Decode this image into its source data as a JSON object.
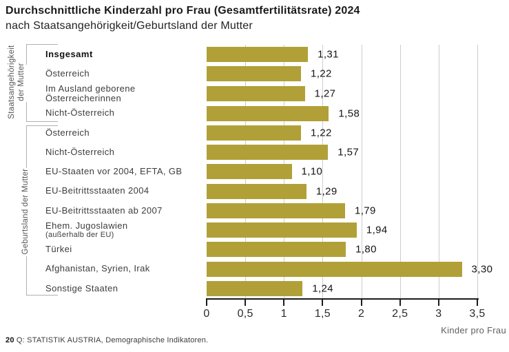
{
  "header": {
    "title": "Durchschnittliche Kinderzahl pro Frau (Gesamtfertilitätsrate) 2024",
    "subtitle": "nach Staatsangehörigkeit/Geburtsland der Mutter"
  },
  "footer": {
    "page_number": "20",
    "source": "Q: STATISTIK AUSTRIA, Demographische Indikatoren."
  },
  "colors": {
    "bar": "#b1a037",
    "grid": "#cccccc",
    "axis": "#1a1a1a",
    "bracket": "#b0b0b0"
  },
  "chart_data": {
    "type": "bar",
    "orientation": "horizontal",
    "title": "Durchschnittliche Kinderzahl pro Frau (Gesamtfertilitätsrate) 2024",
    "subtitle": "nach Staatsangehörigkeit/Geburtsland der Mutter",
    "xlabel": "Kinder pro Frau",
    "xlim": [
      0,
      3.5
    ],
    "xticks": [
      "0",
      "0,5",
      "1",
      "1,5",
      "2",
      "2,5",
      "3",
      "3,5"
    ],
    "xtick_values": [
      0,
      0.5,
      1,
      1.5,
      2,
      2.5,
      3,
      3.5
    ],
    "grid": "vertical gridlines every 0.5, behind bars",
    "groups": [
      {
        "label": "Staatsangehörigkeit der Mutter",
        "label_lines": [
          "Staatsangehörigkeit",
          "der Mutter"
        ],
        "row_start": 0,
        "row_end": 3
      },
      {
        "label": "Geburtsland der Mutter",
        "label_lines": [
          "Geburtsland der Mutter"
        ],
        "row_start": 4,
        "row_end": 12
      }
    ],
    "categories": [
      {
        "lines": [
          "Insgesamt"
        ],
        "bold": true
      },
      {
        "lines": [
          "Österreich"
        ]
      },
      {
        "lines": [
          "Im Ausland geborene",
          "Österreicherinnen"
        ]
      },
      {
        "lines": [
          "Nicht-Österreich"
        ]
      },
      {
        "lines": [
          "Österreich"
        ]
      },
      {
        "lines": [
          "Nicht-Österreich"
        ]
      },
      {
        "lines": [
          "EU-Staaten vor 2004, EFTA, GB"
        ]
      },
      {
        "lines": [
          "EU-Beitrittsstaaten 2004"
        ]
      },
      {
        "lines": [
          "EU-Beitrittsstaaten ab 2007"
        ]
      },
      {
        "lines": [
          "Ehem. Jugoslawien",
          "(außerhalb der EU)"
        ],
        "small_second_line": true
      },
      {
        "lines": [
          "Türkei"
        ]
      },
      {
        "lines": [
          "Afghanistan, Syrien, Irak"
        ]
      },
      {
        "lines": [
          "Sonstige Staaten"
        ]
      }
    ],
    "values": [
      1.31,
      1.22,
      1.27,
      1.58,
      1.22,
      1.57,
      1.1,
      1.29,
      1.79,
      1.94,
      1.8,
      3.3,
      1.24
    ],
    "value_labels": [
      "1,31",
      "1,22",
      "1,27",
      "1,58",
      "1,22",
      "1,57",
      "1,10",
      "1,29",
      "1,79",
      "1,94",
      "1,80",
      "3,30",
      "1,24"
    ]
  }
}
